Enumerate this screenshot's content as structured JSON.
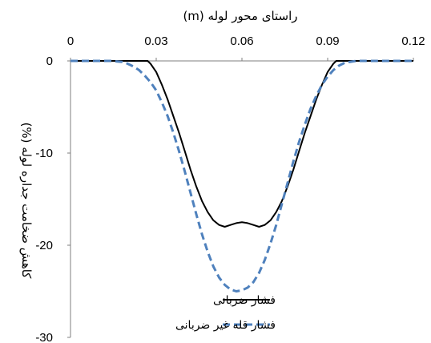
{
  "chart_data": {
    "type": "line",
    "xlabel": "راستای محور لوله (m)",
    "ylabel": "کاهش ضخامت جداره لوله (%)",
    "xlim": [
      0,
      0.12
    ],
    "ylim": [
      -30,
      0
    ],
    "x_ticks": [
      "0",
      "0.03",
      "0.06",
      "0.09",
      "0.12"
    ],
    "x_tick_values": [
      0,
      0.03,
      0.06,
      0.09,
      0.12
    ],
    "y_ticks": [
      "0",
      "-10",
      "-20",
      "-30"
    ],
    "y_tick_values": [
      0,
      -10,
      -20,
      -30
    ],
    "x_axis_position": "top",
    "grid": false,
    "legend_position": "bottom-right",
    "series": [
      {
        "name": "فشار ضربانی",
        "color": "#000000",
        "dash": "solid",
        "points": [
          [
            0,
            0
          ],
          [
            0.025,
            0
          ],
          [
            0.027,
            0
          ],
          [
            0.028,
            -0.3
          ],
          [
            0.03,
            -1.2
          ],
          [
            0.032,
            -2.6
          ],
          [
            0.034,
            -4.2
          ],
          [
            0.036,
            -6.0
          ],
          [
            0.038,
            -7.8
          ],
          [
            0.04,
            -9.8
          ],
          [
            0.042,
            -11.8
          ],
          [
            0.044,
            -13.6
          ],
          [
            0.046,
            -15.2
          ],
          [
            0.048,
            -16.4
          ],
          [
            0.05,
            -17.3
          ],
          [
            0.052,
            -17.8
          ],
          [
            0.054,
            -18.0
          ],
          [
            0.056,
            -17.8
          ],
          [
            0.058,
            -17.6
          ],
          [
            0.06,
            -17.5
          ],
          [
            0.062,
            -17.6
          ],
          [
            0.064,
            -17.8
          ],
          [
            0.066,
            -18.0
          ],
          [
            0.068,
            -17.8
          ],
          [
            0.07,
            -17.3
          ],
          [
            0.072,
            -16.4
          ],
          [
            0.074,
            -15.2
          ],
          [
            0.076,
            -13.6
          ],
          [
            0.078,
            -11.8
          ],
          [
            0.08,
            -9.8
          ],
          [
            0.082,
            -7.8
          ],
          [
            0.084,
            -6.0
          ],
          [
            0.086,
            -4.2
          ],
          [
            0.088,
            -2.6
          ],
          [
            0.09,
            -1.2
          ],
          [
            0.092,
            -0.3
          ],
          [
            0.093,
            0
          ],
          [
            0.12,
            0
          ]
        ]
      },
      {
        "name": "فشار قله غیر ضربانی",
        "color": "#4f81bd",
        "dash": "dashed",
        "points": [
          [
            0,
            0
          ],
          [
            0.014,
            0
          ],
          [
            0.018,
            -0.1
          ],
          [
            0.02,
            -0.3
          ],
          [
            0.022,
            -0.6
          ],
          [
            0.024,
            -1.0
          ],
          [
            0.026,
            -1.6
          ],
          [
            0.028,
            -2.3
          ],
          [
            0.03,
            -3.2
          ],
          [
            0.032,
            -4.5
          ],
          [
            0.034,
            -6.0
          ],
          [
            0.036,
            -7.8
          ],
          [
            0.038,
            -9.8
          ],
          [
            0.04,
            -12.0
          ],
          [
            0.042,
            -14.3
          ],
          [
            0.044,
            -16.6
          ],
          [
            0.046,
            -18.8
          ],
          [
            0.048,
            -20.7
          ],
          [
            0.05,
            -22.3
          ],
          [
            0.052,
            -23.5
          ],
          [
            0.054,
            -24.3
          ],
          [
            0.056,
            -24.8
          ],
          [
            0.058,
            -25.0
          ],
          [
            0.06,
            -24.9
          ],
          [
            0.062,
            -24.6
          ],
          [
            0.064,
            -24.0
          ],
          [
            0.066,
            -23.0
          ],
          [
            0.068,
            -21.6
          ],
          [
            0.07,
            -19.8
          ],
          [
            0.072,
            -17.8
          ],
          [
            0.074,
            -15.5
          ],
          [
            0.076,
            -13.2
          ],
          [
            0.078,
            -10.9
          ],
          [
            0.08,
            -8.8
          ],
          [
            0.082,
            -6.9
          ],
          [
            0.084,
            -5.2
          ],
          [
            0.086,
            -3.8
          ],
          [
            0.088,
            -2.6
          ],
          [
            0.09,
            -1.7
          ],
          [
            0.092,
            -1.0
          ],
          [
            0.094,
            -0.5
          ],
          [
            0.096,
            -0.2
          ],
          [
            0.1,
            0
          ],
          [
            0.12,
            0
          ]
        ]
      }
    ]
  }
}
